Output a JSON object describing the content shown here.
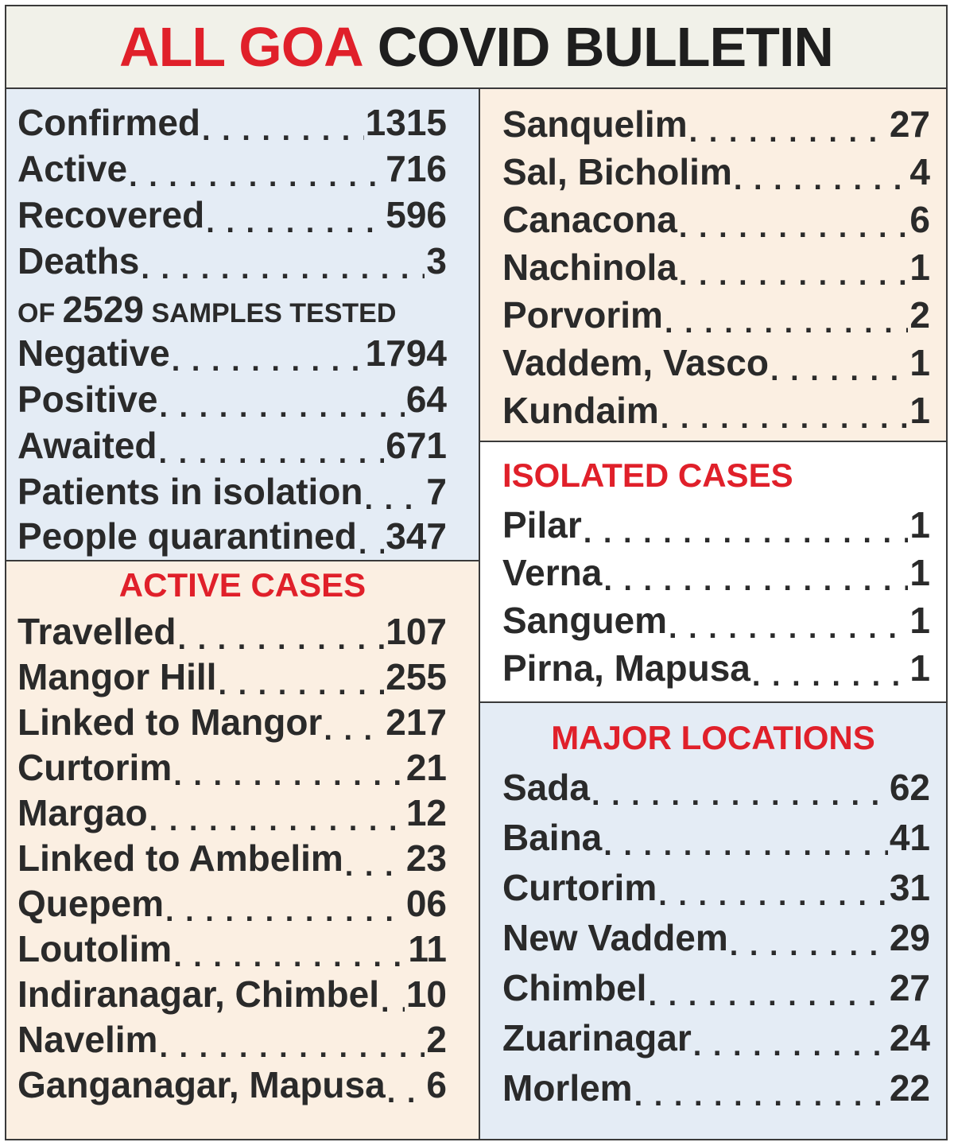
{
  "title": {
    "red": "ALL GOA",
    "black": "COVID BULLETIN"
  },
  "summary": [
    {
      "label": "Confirmed",
      "value": "1315"
    },
    {
      "label": "Active",
      "value": "716"
    },
    {
      "label": "Recovered",
      "value": "596"
    },
    {
      "label": "Deaths",
      "value": "3"
    }
  ],
  "samples": {
    "prefix": "OF",
    "count": "2529",
    "suffix": "SAMPLES TESTED"
  },
  "tests": [
    {
      "label": "Negative",
      "value": "1794"
    },
    {
      "label": "Positive",
      "value": "64"
    },
    {
      "label": "Awaited",
      "value": "671"
    },
    {
      "label": "Patients in isolation",
      "value": "7"
    },
    {
      "label": "People quarantined",
      "value": "347"
    }
  ],
  "active_cases": {
    "heading": "ACTIVE CASES",
    "rows": [
      {
        "label": "Travelled",
        "value": "107"
      },
      {
        "label": "Mangor Hill",
        "value": "255"
      },
      {
        "label": "Linked to Mangor",
        "value": "217"
      },
      {
        "label": "Curtorim",
        "value": "21"
      },
      {
        "label": "Margao",
        "value": "12"
      },
      {
        "label": "Linked to Ambelim",
        "value": "23"
      },
      {
        "label": "Quepem",
        "value": "06"
      },
      {
        "label": "Loutolim",
        "value": "11"
      },
      {
        "label": "Indiranagar, Chimbel",
        "value": "10"
      },
      {
        "label": "Navelim",
        "value": "2"
      },
      {
        "label": "Ganganagar, Mapusa",
        "value": "6"
      }
    ]
  },
  "right_top": [
    {
      "label": "Sanquelim",
      "value": "27"
    },
    {
      "label": "Sal, Bicholim",
      "value": "4"
    },
    {
      "label": "Canacona",
      "value": "6"
    },
    {
      "label": "Nachinola",
      "value": "1"
    },
    {
      "label": "Porvorim",
      "value": "2"
    },
    {
      "label": "Vaddem, Vasco",
      "value": "1"
    },
    {
      "label": "Kundaim",
      "value": "1"
    }
  ],
  "isolated_cases": {
    "heading": "ISOLATED CASES",
    "rows": [
      {
        "label": "Pilar",
        "value": "1"
      },
      {
        "label": "Verna",
        "value": "1"
      },
      {
        "label": "Sanguem",
        "value": "1"
      },
      {
        "label": "Pirna, Mapusa",
        "value": "1"
      }
    ]
  },
  "major_locations": {
    "heading": "MAJOR LOCATIONS",
    "rows": [
      {
        "label": "Sada",
        "value": "62"
      },
      {
        "label": "Baina",
        "value": "41"
      },
      {
        "label": "Curtorim",
        "value": "31"
      },
      {
        "label": "New Vaddem",
        "value": "29"
      },
      {
        "label": "Chimbel",
        "value": "27"
      },
      {
        "label": "Zuarinagar",
        "value": "24"
      },
      {
        "label": "Morlem",
        "value": "22"
      }
    ]
  },
  "colors": {
    "red": "#e0202a",
    "text": "#2a2a2a",
    "blue_panel": "#e4ecf5",
    "peach_panel": "#fbefe2"
  }
}
